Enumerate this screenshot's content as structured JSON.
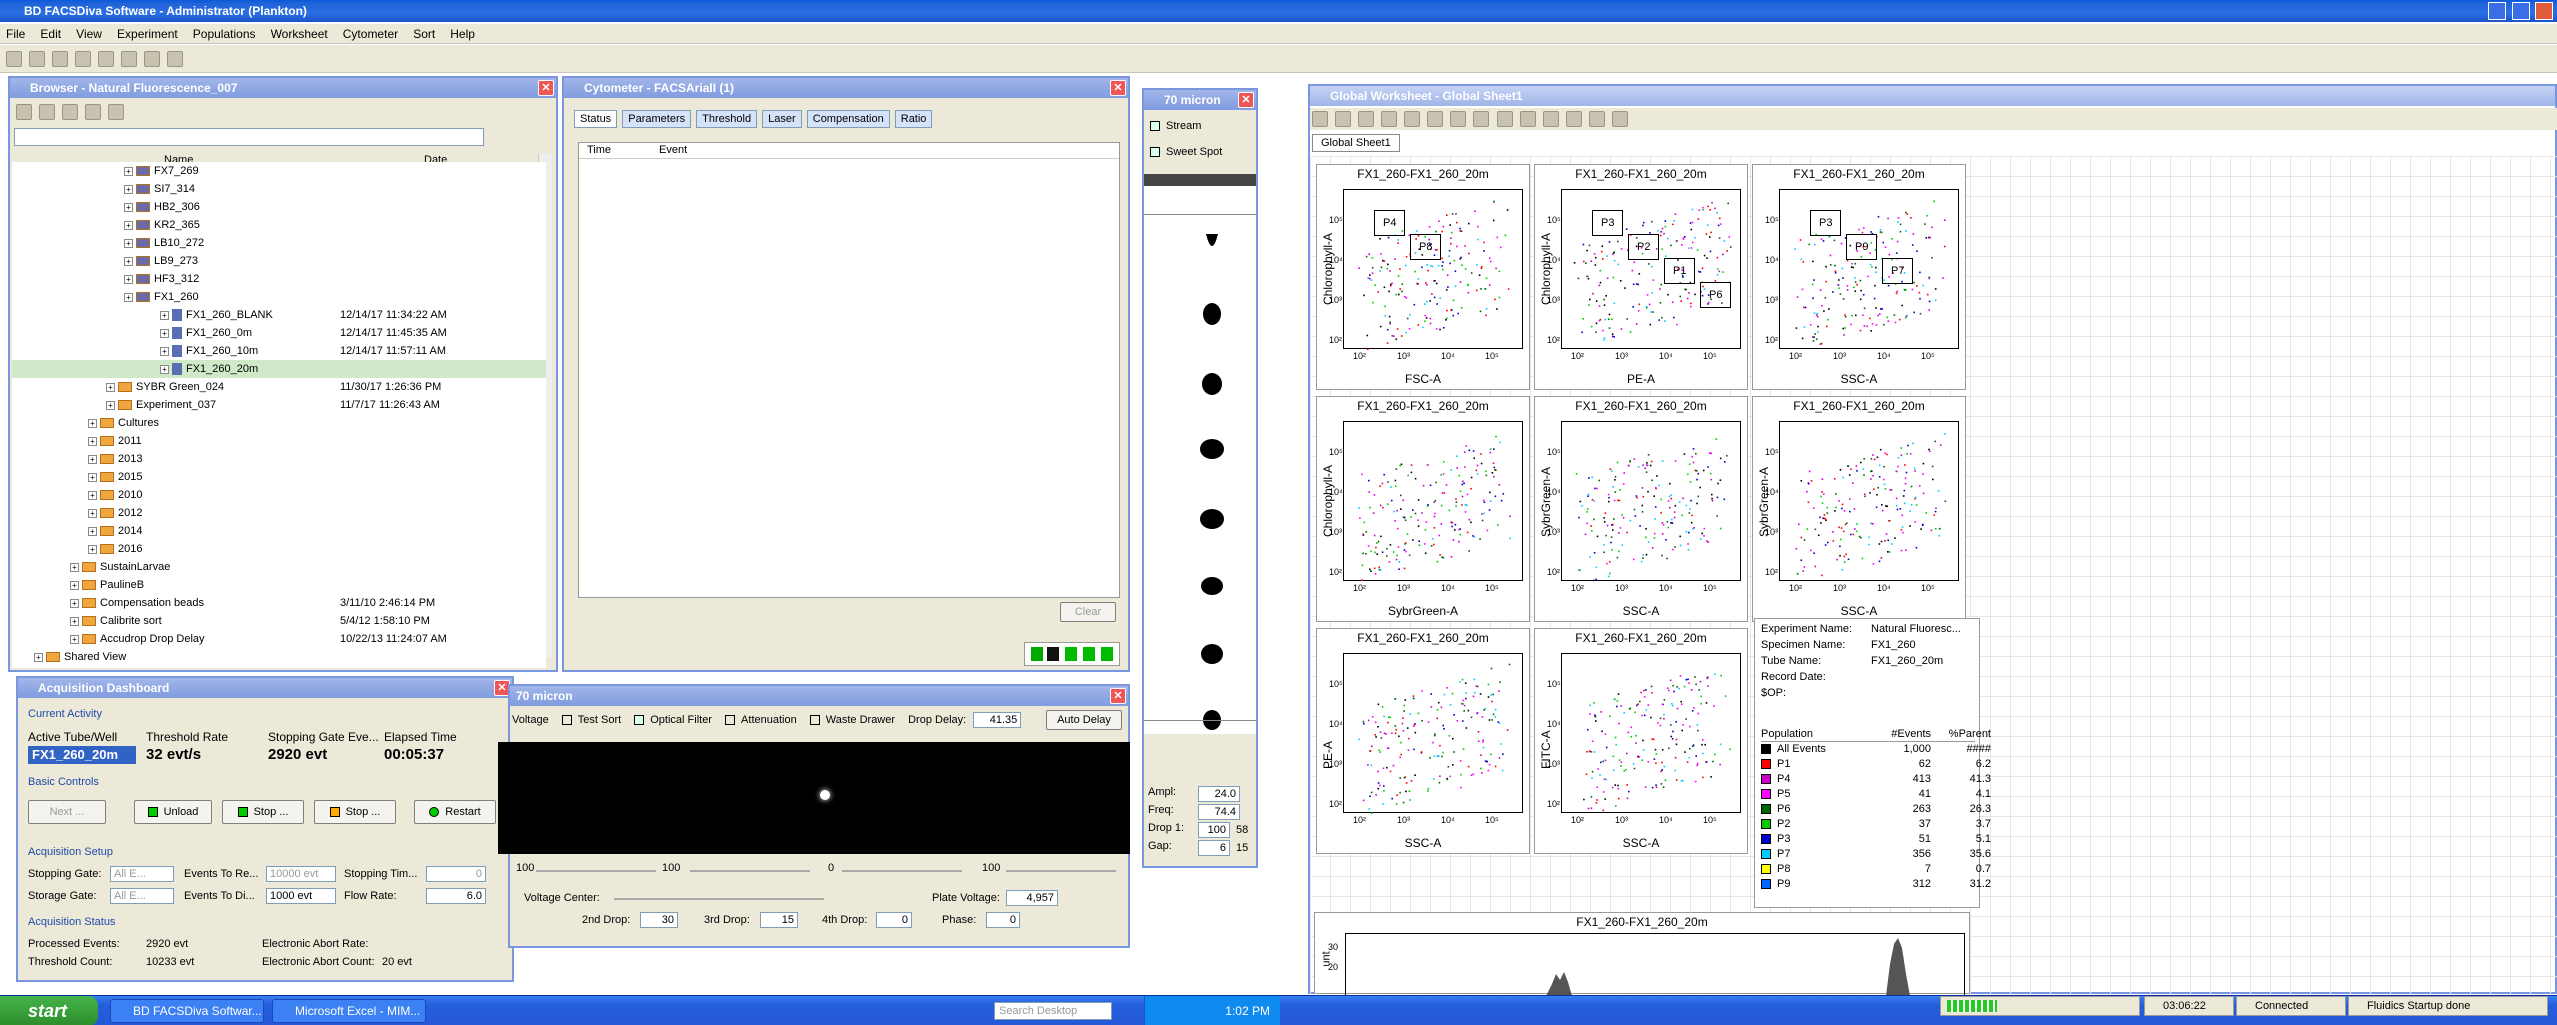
{
  "app_title": "BD FACSDiva Software - Administrator (Plankton)",
  "menu": [
    "File",
    "Edit",
    "View",
    "Experiment",
    "Populations",
    "Worksheet",
    "Cytometer",
    "Sort",
    "Help"
  ],
  "browser": {
    "title": "Browser - Natural Fluorescence_007",
    "col_name": "Name",
    "col_date": "Date",
    "items": [
      {
        "name": "FX7_269",
        "date": "",
        "indent": 6,
        "type": "spec"
      },
      {
        "name": "SI7_314",
        "date": "",
        "indent": 6,
        "type": "spec"
      },
      {
        "name": "HB2_306",
        "date": "",
        "indent": 6,
        "type": "spec"
      },
      {
        "name": "KR2_365",
        "date": "",
        "indent": 6,
        "type": "spec"
      },
      {
        "name": "LB10_272",
        "date": "",
        "indent": 6,
        "type": "spec"
      },
      {
        "name": "LB9_273",
        "date": "",
        "indent": 6,
        "type": "spec"
      },
      {
        "name": "HF3_312",
        "date": "",
        "indent": 6,
        "type": "spec"
      },
      {
        "name": "FX1_260",
        "date": "",
        "indent": 6,
        "type": "spec"
      },
      {
        "name": "FX1_260_BLANK",
        "date": "12/14/17 11:34:22 AM",
        "indent": 8,
        "type": "tube"
      },
      {
        "name": "FX1_260_0m",
        "date": "12/14/17 11:45:35 AM",
        "indent": 8,
        "type": "tube"
      },
      {
        "name": "FX1_260_10m",
        "date": "12/14/17 11:57:11 AM",
        "indent": 8,
        "type": "tube"
      },
      {
        "name": "FX1_260_20m",
        "date": "",
        "indent": 8,
        "type": "tube",
        "selected": true
      },
      {
        "name": "SYBR Green_024",
        "date": "11/30/17 1:26:36 PM",
        "indent": 5,
        "type": "exp"
      },
      {
        "name": "Experiment_037",
        "date": "11/7/17 11:26:43 AM",
        "indent": 5,
        "type": "exp"
      },
      {
        "name": "Cultures",
        "date": "",
        "indent": 4,
        "type": "folder"
      },
      {
        "name": "2011",
        "date": "",
        "indent": 4,
        "type": "folder"
      },
      {
        "name": "2013",
        "date": "",
        "indent": 4,
        "type": "folder"
      },
      {
        "name": "2015",
        "date": "",
        "indent": 4,
        "type": "folder"
      },
      {
        "name": "2010",
        "date": "",
        "indent": 4,
        "type": "folder"
      },
      {
        "name": "2012",
        "date": "",
        "indent": 4,
        "type": "folder"
      },
      {
        "name": "2014",
        "date": "",
        "indent": 4,
        "type": "folder"
      },
      {
        "name": "2016",
        "date": "",
        "indent": 4,
        "type": "folder"
      },
      {
        "name": "SustainLarvae",
        "date": "",
        "indent": 3,
        "type": "folder"
      },
      {
        "name": "PaulineB",
        "date": "",
        "indent": 3,
        "type": "folder"
      },
      {
        "name": "Compensation beads",
        "date": "3/11/10 2:46:14 PM",
        "indent": 3,
        "type": "exp"
      },
      {
        "name": "Calibrite sort",
        "date": "5/4/12 1:58:10 PM",
        "indent": 3,
        "type": "exp"
      },
      {
        "name": "Accudrop Drop Delay",
        "date": "10/22/13 11:24:07 AM",
        "indent": 3,
        "type": "exp"
      },
      {
        "name": "Shared View",
        "date": "",
        "indent": 1,
        "type": "folder"
      }
    ]
  },
  "cytometer": {
    "title": "Cytometer - FACSAriaII (1)",
    "tabs": [
      "Status",
      "Parameters",
      "Threshold",
      "Laser",
      "Compensation",
      "Ratio"
    ],
    "col_time": "Time",
    "col_event": "Event",
    "clear": "Clear"
  },
  "micron_side": {
    "title": "70 micron",
    "stream": "Stream",
    "sweet": "Sweet Spot",
    "ampl_label": "Ampl:",
    "ampl": "24.0",
    "freq_label": "Freq:",
    "freq": "74.4",
    "drop1_label": "Drop 1:",
    "drop1": "100",
    "drop1b": "58",
    "gap_label": "Gap:",
    "gap": "6",
    "gapb": "15"
  },
  "acq": {
    "title": "Acquisition Dashboard",
    "current_activity": "Current Activity",
    "h_tube": "Active Tube/Well",
    "h_rate": "Threshold Rate",
    "h_gate": "Stopping Gate Eve...",
    "h_elapsed": "Elapsed Time",
    "tube_val": "FX1_260_20m",
    "rate_val": "32 evt/s",
    "gate_val": "2920 evt",
    "elapsed_val": "00:05:37",
    "basic_controls": "Basic Controls",
    "b_next": "Next ...",
    "b_unload": "Unload",
    "b_stop1": "Stop ...",
    "b_stop2": "Stop ...",
    "b_restart": "Restart",
    "setup": "Acquisition Setup",
    "stopping_gate": "Stopping Gate:",
    "stopping_gate_v": "All E...",
    "events_to_re": "Events To Re...",
    "events_to_re_v": "10000 evt",
    "stopping_tim": "Stopping Tim...",
    "stopping_tim_v": "0",
    "storage_gate": "Storage Gate:",
    "storage_gate_v": "All E...",
    "events_to_di": "Events To Di...",
    "events_to_di_v": "1000 evt",
    "flow_rate": "Flow Rate:",
    "flow_rate_v": "6.0",
    "status": "Acquisition Status",
    "processed": "Processed Events:",
    "processed_v": "2920 evt",
    "threshold_count": "Threshold Count:",
    "threshold_count_v": "10233 evt",
    "abort_rate": "Electronic Abort Rate:",
    "abort_count": "Electronic Abort Count:",
    "abort_count_v": "20 evt"
  },
  "micron_main": {
    "title": "70 micron",
    "t_voltage": "Voltage",
    "t_test": "Test Sort",
    "t_optical": "Optical Filter",
    "t_atten": "Attenuation",
    "t_waste": "Waste Drawer",
    "drop_delay": "Drop Delay:",
    "drop_delay_v": "41.35",
    "auto_delay": "Auto Delay",
    "s1": "100",
    "s2": "100",
    "s3": "0",
    "s4": "100",
    "voltage_center": "Voltage Center:",
    "plate_voltage": "Plate Voltage:",
    "plate_voltage_v": "4,957",
    "drop2": "2nd Drop:",
    "drop2_v": "30",
    "drop3": "3rd Drop:",
    "drop3_v": "15",
    "drop4": "4th Drop:",
    "drop4_v": "0",
    "phase": "Phase:",
    "phase_v": "0"
  },
  "worksheet": {
    "title": "Global Worksheet - Global Sheet1",
    "tab": "Global Sheet1"
  },
  "plots": [
    {
      "title": "FX1_260-FX1_260_20m",
      "x": "FSC-A",
      "y": "Chlorophyll-A",
      "gates": [
        "P4",
        "P8"
      ]
    },
    {
      "title": "FX1_260-FX1_260_20m",
      "x": "PE-A",
      "y": "Chlorophyll-A",
      "gates": [
        "P3",
        "P2",
        "P1",
        "P6"
      ]
    },
    {
      "title": "FX1_260-FX1_260_20m",
      "x": "SSC-A",
      "y": "",
      "gates": [
        "P3",
        "P9",
        "P7"
      ]
    },
    {
      "title": "FX1_260-FX1_260_20m",
      "x": "SybrGreen-A",
      "y": "Chlorophyll-A",
      "gates": []
    },
    {
      "title": "FX1_260-FX1_260_20m",
      "x": "SSC-A",
      "y": "SybrGreen-A",
      "gates": []
    },
    {
      "title": "FX1_260-FX1_260_20m",
      "x": "SSC-A",
      "y": "SybrGreen-A",
      "gates": []
    },
    {
      "title": "FX1_260-FX1_260_20m",
      "x": "SSC-A",
      "y": "PE-A",
      "gates": []
    },
    {
      "title": "FX1_260-FX1_260_20m",
      "x": "SSC-A",
      "y": "FITC-A",
      "gates": []
    }
  ],
  "ticks": {
    "x": [
      "10²",
      "10³",
      "10⁴",
      "10⁵"
    ],
    "y": [
      "10²",
      "10³",
      "10⁴",
      "10⁵"
    ]
  },
  "stats": {
    "exp_label": "Experiment Name:",
    "exp": "Natural Fluoresc...",
    "spec_label": "Specimen Name:",
    "spec": "FX1_260",
    "tube_label": "Tube Name:",
    "tube": "FX1_260_20m",
    "rec_label": "Record Date:",
    "op_label": "$OP:",
    "h_pop": "Population",
    "h_events": "#Events",
    "h_parent": "%Parent",
    "rows": [
      {
        "name": "All Events",
        "events": "1,000",
        "parent": "####",
        "color": "#000000"
      },
      {
        "name": "P1",
        "events": "62",
        "parent": "6.2",
        "color": "#ff0000"
      },
      {
        "name": "P4",
        "events": "413",
        "parent": "41.3",
        "color": "#cc00cc"
      },
      {
        "name": "P5",
        "events": "41",
        "parent": "4.1",
        "color": "#ff00ff"
      },
      {
        "name": "P6",
        "events": "263",
        "parent": "26.3",
        "color": "#006600"
      },
      {
        "name": "P2",
        "events": "37",
        "parent": "3.7",
        "color": "#00cc00"
      },
      {
        "name": "P3",
        "events": "51",
        "parent": "5.1",
        "color": "#0000cc"
      },
      {
        "name": "P7",
        "events": "356",
        "parent": "35.6",
        "color": "#00ccff"
      },
      {
        "name": "P8",
        "events": "7",
        "parent": "0.7",
        "color": "#ffff00"
      },
      {
        "name": "P9",
        "events": "312",
        "parent": "31.2",
        "color": "#0066ff"
      }
    ]
  },
  "hist": {
    "title": "FX1_260-FX1_260_20m",
    "ylabel": "unt",
    "ticks": [
      "30",
      "20"
    ]
  },
  "taskbar": {
    "start": "start",
    "t1": "BD FACSDiva Softwar...",
    "t2": "Microsoft Excel - MIM...",
    "search": "Search Desktop",
    "clock": "1:02 PM"
  },
  "status": {
    "time": "03:06:22",
    "connected": "Connected",
    "fluidics": "Fluidics Startup done"
  }
}
